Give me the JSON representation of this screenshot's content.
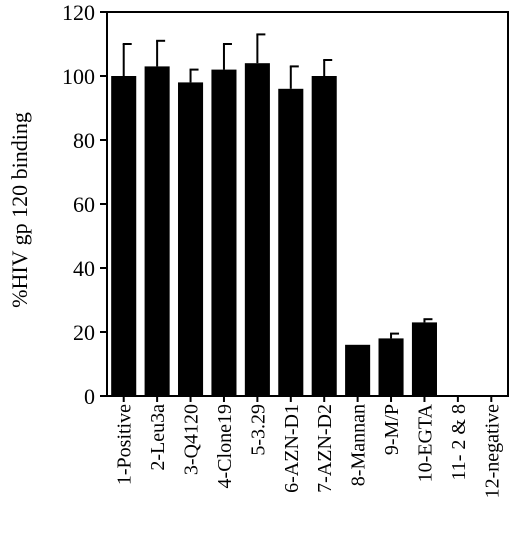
{
  "chart_data": {
    "type": "bar",
    "title": "",
    "xlabel": "",
    "ylabel": "%HIV gp 120 binding",
    "ylim": [
      0,
      120
    ],
    "yticks": [
      0,
      20,
      40,
      60,
      80,
      100,
      120
    ],
    "grid": false,
    "legend": "none",
    "bar_color": "#000000",
    "categories": [
      "1-Positive",
      "2-Leu3a",
      "3-Q4120",
      "4-Clone19",
      "5-3.29",
      "6-AZN-D1",
      "7-AZN-D2",
      "8-Mannan",
      "9-M/P",
      "10-EGTA",
      "11- 2 & 8",
      "12-negative"
    ],
    "values": [
      100,
      103,
      98,
      102,
      104,
      96,
      100,
      16,
      18,
      23,
      0,
      0
    ],
    "error": [
      10,
      8,
      4,
      8,
      9,
      7,
      5,
      0,
      1.5,
      1,
      0,
      0
    ]
  }
}
